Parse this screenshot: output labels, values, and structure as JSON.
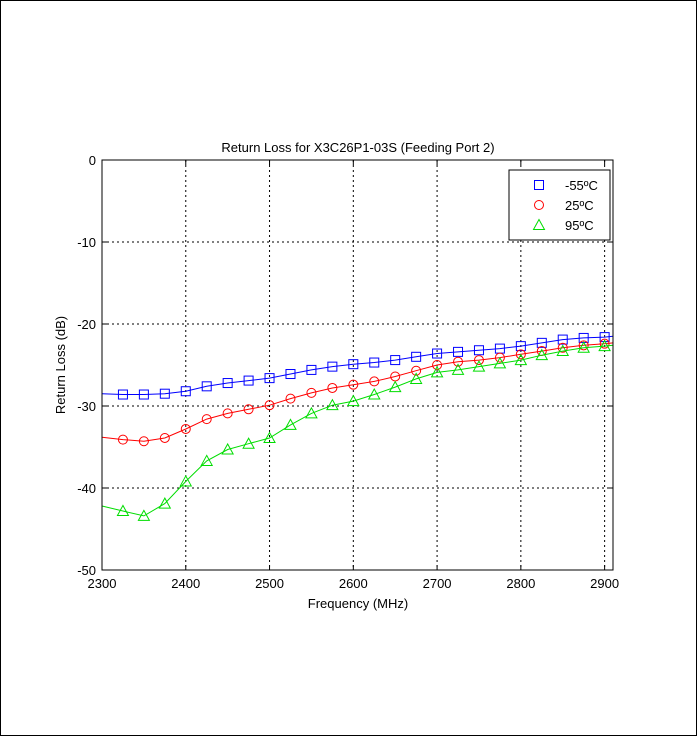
{
  "chart_data": {
    "type": "line",
    "title": "Return Loss for X3C26P1-03S (Feeding Port 2)",
    "xlabel": "Frequency (MHz)",
    "ylabel": "Return Loss (dB)",
    "xlim": [
      2300,
      2910
    ],
    "ylim": [
      -50,
      0
    ],
    "xticks": [
      2300,
      2400,
      2500,
      2600,
      2700,
      2800,
      2900
    ],
    "yticks": [
      0,
      -10,
      -20,
      -30,
      -40,
      -50
    ],
    "grid": true,
    "legend_position": "top-right",
    "x": [
      2300,
      2325,
      2350,
      2375,
      2400,
      2425,
      2450,
      2475,
      2500,
      2525,
      2550,
      2575,
      2600,
      2625,
      2650,
      2675,
      2700,
      2725,
      2750,
      2775,
      2800,
      2825,
      2850,
      2875,
      2900,
      2910
    ],
    "series": [
      {
        "name": "-55ºC",
        "color": "#0000ff",
        "marker": "square",
        "values": [
          -28.5,
          -28.6,
          -28.6,
          -28.5,
          -28.2,
          -27.6,
          -27.2,
          -26.9,
          -26.6,
          -26.1,
          -25.6,
          -25.2,
          -24.9,
          -24.7,
          -24.4,
          -24.0,
          -23.6,
          -23.4,
          -23.2,
          -23.0,
          -22.7,
          -22.3,
          -21.9,
          -21.7,
          -21.6,
          -21.5
        ]
      },
      {
        "name": "25ºC",
        "color": "#ff0000",
        "marker": "circle",
        "values": [
          -33.8,
          -34.1,
          -34.3,
          -33.9,
          -32.8,
          -31.6,
          -30.9,
          -30.4,
          -29.9,
          -29.1,
          -28.4,
          -27.8,
          -27.4,
          -27.0,
          -26.4,
          -25.7,
          -25.0,
          -24.6,
          -24.4,
          -24.1,
          -23.7,
          -23.3,
          -22.9,
          -22.6,
          -22.4,
          -22.3
        ]
      },
      {
        "name": "95ºC",
        "color": "#00dd00",
        "marker": "triangle",
        "values": [
          -42.2,
          -42.8,
          -43.4,
          -41.9,
          -39.2,
          -36.7,
          -35.3,
          -34.6,
          -33.9,
          -32.3,
          -30.9,
          -29.9,
          -29.4,
          -28.6,
          -27.7,
          -26.7,
          -25.9,
          -25.6,
          -25.2,
          -24.8,
          -24.4,
          -23.8,
          -23.3,
          -22.9,
          -22.7,
          -22.6
        ]
      }
    ]
  }
}
